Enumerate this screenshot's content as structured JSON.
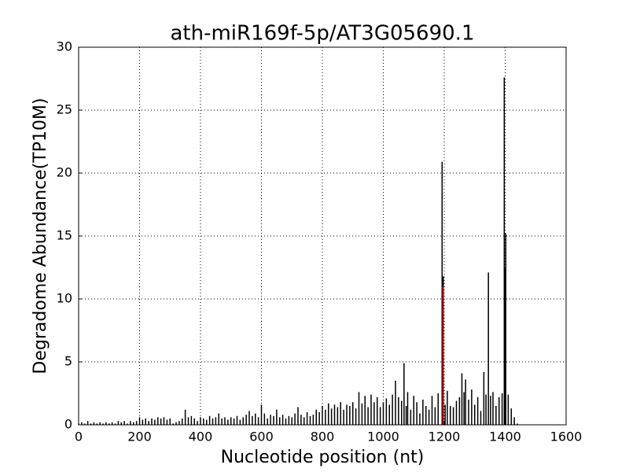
{
  "chart_data": {
    "type": "stem",
    "title": "ath-miR169f-5p/AT3G05690.1",
    "x_label": "Nucleotide position (nt)",
    "y_label": "Degradome Abundance(TP10M)",
    "xlim": [
      0,
      1600
    ],
    "xticks": [
      0,
      200,
      400,
      600,
      800,
      1000,
      1200,
      1400,
      1600
    ],
    "ylim": [
      0,
      30
    ],
    "yticks": [
      0,
      5,
      10,
      15,
      20,
      25,
      30
    ],
    "grid": true,
    "series": [
      {
        "color": "#000000",
        "x": [
          0,
          10,
          20,
          30,
          40,
          50,
          60,
          70,
          80,
          90,
          100,
          110,
          120,
          130,
          140,
          150,
          160,
          170,
          180,
          190,
          200,
          210,
          220,
          230,
          240,
          250,
          260,
          270,
          280,
          290,
          300,
          310,
          320,
          330,
          340,
          350,
          360,
          370,
          380,
          390,
          400,
          410,
          420,
          430,
          440,
          450,
          460,
          470,
          480,
          490,
          500,
          510,
          520,
          530,
          540,
          550,
          560,
          570,
          580,
          590,
          600,
          610,
          620,
          630,
          640,
          650,
          660,
          670,
          680,
          690,
          700,
          710,
          720,
          730,
          740,
          750,
          760,
          770,
          780,
          790,
          800,
          810,
          820,
          830,
          840,
          850,
          860,
          870,
          880,
          890,
          900,
          910,
          920,
          930,
          940,
          950,
          960,
          970,
          980,
          990,
          1000,
          1010,
          1020,
          1030,
          1040,
          1050,
          1060,
          1068,
          1075,
          1080,
          1090,
          1100,
          1110,
          1120,
          1130,
          1140,
          1150,
          1160,
          1170,
          1180,
          1193,
          1197,
          1203,
          1210,
          1220,
          1230,
          1240,
          1250,
          1258,
          1265,
          1270,
          1280,
          1290,
          1300,
          1310,
          1320,
          1330,
          1337,
          1345,
          1352,
          1360,
          1370,
          1380,
          1390,
          1397,
          1400,
          1402,
          1410,
          1420,
          1430,
          1440
        ],
        "values": [
          0.1,
          0.2,
          0.1,
          0.3,
          0.1,
          0.2,
          0.1,
          0.2,
          0.1,
          0.2,
          0.1,
          0.2,
          0.1,
          0.3,
          0.2,
          0.3,
          0.1,
          0.3,
          0.2,
          0.3,
          0.6,
          0.4,
          0.5,
          0.3,
          0.5,
          0.4,
          0.6,
          0.5,
          0.6,
          0.4,
          0.5,
          0.1,
          0.2,
          0.3,
          0.5,
          1.2,
          0.6,
          0.7,
          0.5,
          0.3,
          0.6,
          0.5,
          0.4,
          0.7,
          0.5,
          0.6,
          0.9,
          0.5,
          0.6,
          0.4,
          0.6,
          0.5,
          0.7,
          0.4,
          0.6,
          0.8,
          1.1,
          0.7,
          0.9,
          0.6,
          1.6,
          0.9,
          0.5,
          0.8,
          0.7,
          1.2,
          0.6,
          0.8,
          0.5,
          0.7,
          0.6,
          0.9,
          1.4,
          0.8,
          0.6,
          1.0,
          0.7,
          0.8,
          1.2,
          1.0,
          1.5,
          1.2,
          1.7,
          1.3,
          1.6,
          1.4,
          1.8,
          1.2,
          1.6,
          1.5,
          1.8,
          1.3,
          2.6,
          1.7,
          2.3,
          1.4,
          2.4,
          1.8,
          2.2,
          1.4,
          1.8,
          2.1,
          1.6,
          2.4,
          3.5,
          2.2,
          1.9,
          4.9,
          1.5,
          2.6,
          1.2,
          2.3,
          1.8,
          0.9,
          2.0,
          1.5,
          1.2,
          2.3,
          1.4,
          2.5,
          20.9,
          11.8,
          1.6,
          2.7,
          1.5,
          1.4,
          1.9,
          2.2,
          4.1,
          2.6,
          3.6,
          2.0,
          2.8,
          1.6,
          2.2,
          1.1,
          4.2,
          2.4,
          12.1,
          2.3,
          2.6,
          1.5,
          2.2,
          2.5,
          27.6,
          12.4,
          15.2,
          2.4,
          1.3,
          0.6,
          0.1
        ]
      },
      {
        "color": "#ff0000",
        "x": [
          1196
        ],
        "values": [
          11.0
        ]
      }
    ]
  }
}
